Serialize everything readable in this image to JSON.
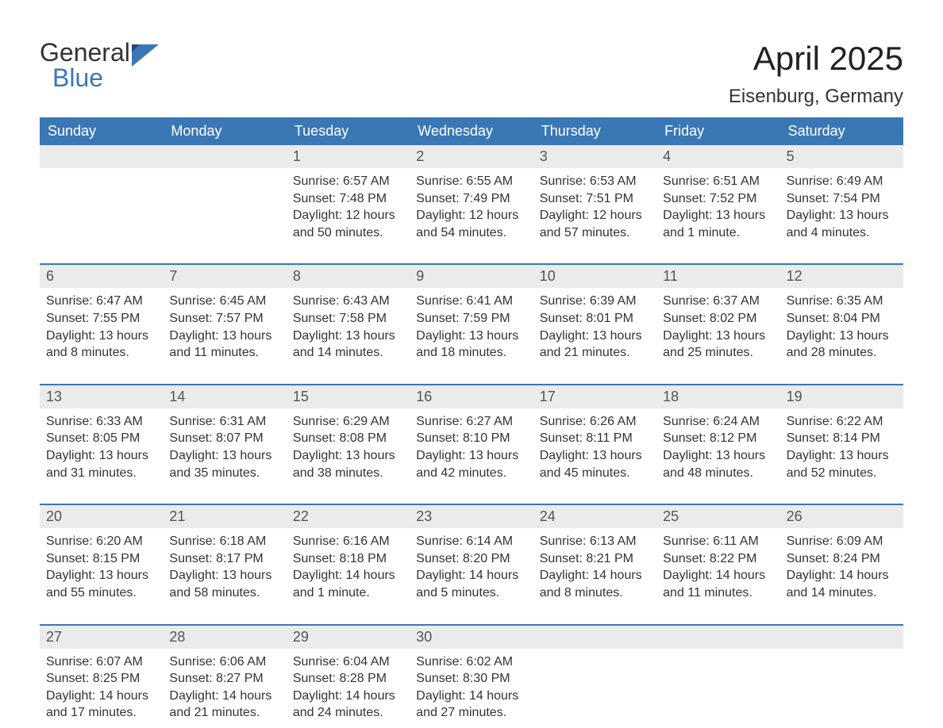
{
  "logo": {
    "word1": "General",
    "word2": "Blue",
    "accent_color": "#3a78b5"
  },
  "header": {
    "month_title": "April 2025",
    "location": "Eisenburg, Germany",
    "title_fontsize": 42,
    "location_fontsize": 24
  },
  "calendar": {
    "header_bg": "#3a78b5",
    "header_fg": "#ffffff",
    "daynum_bg": "#ebebeb",
    "row_border_color": "#3a78b5",
    "text_color": "#333333",
    "days_of_week": [
      "Sunday",
      "Monday",
      "Tuesday",
      "Wednesday",
      "Thursday",
      "Friday",
      "Saturday"
    ],
    "weeks": [
      [
        {
          "day": "",
          "sunrise": "",
          "sunset": "",
          "daylight1": "",
          "daylight2": ""
        },
        {
          "day": "",
          "sunrise": "",
          "sunset": "",
          "daylight1": "",
          "daylight2": ""
        },
        {
          "day": "1",
          "sunrise": "Sunrise: 6:57 AM",
          "sunset": "Sunset: 7:48 PM",
          "daylight1": "Daylight: 12 hours",
          "daylight2": "and 50 minutes."
        },
        {
          "day": "2",
          "sunrise": "Sunrise: 6:55 AM",
          "sunset": "Sunset: 7:49 PM",
          "daylight1": "Daylight: 12 hours",
          "daylight2": "and 54 minutes."
        },
        {
          "day": "3",
          "sunrise": "Sunrise: 6:53 AM",
          "sunset": "Sunset: 7:51 PM",
          "daylight1": "Daylight: 12 hours",
          "daylight2": "and 57 minutes."
        },
        {
          "day": "4",
          "sunrise": "Sunrise: 6:51 AM",
          "sunset": "Sunset: 7:52 PM",
          "daylight1": "Daylight: 13 hours",
          "daylight2": "and 1 minute."
        },
        {
          "day": "5",
          "sunrise": "Sunrise: 6:49 AM",
          "sunset": "Sunset: 7:54 PM",
          "daylight1": "Daylight: 13 hours",
          "daylight2": "and 4 minutes."
        }
      ],
      [
        {
          "day": "6",
          "sunrise": "Sunrise: 6:47 AM",
          "sunset": "Sunset: 7:55 PM",
          "daylight1": "Daylight: 13 hours",
          "daylight2": "and 8 minutes."
        },
        {
          "day": "7",
          "sunrise": "Sunrise: 6:45 AM",
          "sunset": "Sunset: 7:57 PM",
          "daylight1": "Daylight: 13 hours",
          "daylight2": "and 11 minutes."
        },
        {
          "day": "8",
          "sunrise": "Sunrise: 6:43 AM",
          "sunset": "Sunset: 7:58 PM",
          "daylight1": "Daylight: 13 hours",
          "daylight2": "and 14 minutes."
        },
        {
          "day": "9",
          "sunrise": "Sunrise: 6:41 AM",
          "sunset": "Sunset: 7:59 PM",
          "daylight1": "Daylight: 13 hours",
          "daylight2": "and 18 minutes."
        },
        {
          "day": "10",
          "sunrise": "Sunrise: 6:39 AM",
          "sunset": "Sunset: 8:01 PM",
          "daylight1": "Daylight: 13 hours",
          "daylight2": "and 21 minutes."
        },
        {
          "day": "11",
          "sunrise": "Sunrise: 6:37 AM",
          "sunset": "Sunset: 8:02 PM",
          "daylight1": "Daylight: 13 hours",
          "daylight2": "and 25 minutes."
        },
        {
          "day": "12",
          "sunrise": "Sunrise: 6:35 AM",
          "sunset": "Sunset: 8:04 PM",
          "daylight1": "Daylight: 13 hours",
          "daylight2": "and 28 minutes."
        }
      ],
      [
        {
          "day": "13",
          "sunrise": "Sunrise: 6:33 AM",
          "sunset": "Sunset: 8:05 PM",
          "daylight1": "Daylight: 13 hours",
          "daylight2": "and 31 minutes."
        },
        {
          "day": "14",
          "sunrise": "Sunrise: 6:31 AM",
          "sunset": "Sunset: 8:07 PM",
          "daylight1": "Daylight: 13 hours",
          "daylight2": "and 35 minutes."
        },
        {
          "day": "15",
          "sunrise": "Sunrise: 6:29 AM",
          "sunset": "Sunset: 8:08 PM",
          "daylight1": "Daylight: 13 hours",
          "daylight2": "and 38 minutes."
        },
        {
          "day": "16",
          "sunrise": "Sunrise: 6:27 AM",
          "sunset": "Sunset: 8:10 PM",
          "daylight1": "Daylight: 13 hours",
          "daylight2": "and 42 minutes."
        },
        {
          "day": "17",
          "sunrise": "Sunrise: 6:26 AM",
          "sunset": "Sunset: 8:11 PM",
          "daylight1": "Daylight: 13 hours",
          "daylight2": "and 45 minutes."
        },
        {
          "day": "18",
          "sunrise": "Sunrise: 6:24 AM",
          "sunset": "Sunset: 8:12 PM",
          "daylight1": "Daylight: 13 hours",
          "daylight2": "and 48 minutes."
        },
        {
          "day": "19",
          "sunrise": "Sunrise: 6:22 AM",
          "sunset": "Sunset: 8:14 PM",
          "daylight1": "Daylight: 13 hours",
          "daylight2": "and 52 minutes."
        }
      ],
      [
        {
          "day": "20",
          "sunrise": "Sunrise: 6:20 AM",
          "sunset": "Sunset: 8:15 PM",
          "daylight1": "Daylight: 13 hours",
          "daylight2": "and 55 minutes."
        },
        {
          "day": "21",
          "sunrise": "Sunrise: 6:18 AM",
          "sunset": "Sunset: 8:17 PM",
          "daylight1": "Daylight: 13 hours",
          "daylight2": "and 58 minutes."
        },
        {
          "day": "22",
          "sunrise": "Sunrise: 6:16 AM",
          "sunset": "Sunset: 8:18 PM",
          "daylight1": "Daylight: 14 hours",
          "daylight2": "and 1 minute."
        },
        {
          "day": "23",
          "sunrise": "Sunrise: 6:14 AM",
          "sunset": "Sunset: 8:20 PM",
          "daylight1": "Daylight: 14 hours",
          "daylight2": "and 5 minutes."
        },
        {
          "day": "24",
          "sunrise": "Sunrise: 6:13 AM",
          "sunset": "Sunset: 8:21 PM",
          "daylight1": "Daylight: 14 hours",
          "daylight2": "and 8 minutes."
        },
        {
          "day": "25",
          "sunrise": "Sunrise: 6:11 AM",
          "sunset": "Sunset: 8:22 PM",
          "daylight1": "Daylight: 14 hours",
          "daylight2": "and 11 minutes."
        },
        {
          "day": "26",
          "sunrise": "Sunrise: 6:09 AM",
          "sunset": "Sunset: 8:24 PM",
          "daylight1": "Daylight: 14 hours",
          "daylight2": "and 14 minutes."
        }
      ],
      [
        {
          "day": "27",
          "sunrise": "Sunrise: 6:07 AM",
          "sunset": "Sunset: 8:25 PM",
          "daylight1": "Daylight: 14 hours",
          "daylight2": "and 17 minutes."
        },
        {
          "day": "28",
          "sunrise": "Sunrise: 6:06 AM",
          "sunset": "Sunset: 8:27 PM",
          "daylight1": "Daylight: 14 hours",
          "daylight2": "and 21 minutes."
        },
        {
          "day": "29",
          "sunrise": "Sunrise: 6:04 AM",
          "sunset": "Sunset: 8:28 PM",
          "daylight1": "Daylight: 14 hours",
          "daylight2": "and 24 minutes."
        },
        {
          "day": "30",
          "sunrise": "Sunrise: 6:02 AM",
          "sunset": "Sunset: 8:30 PM",
          "daylight1": "Daylight: 14 hours",
          "daylight2": "and 27 minutes."
        },
        {
          "day": "",
          "sunrise": "",
          "sunset": "",
          "daylight1": "",
          "daylight2": ""
        },
        {
          "day": "",
          "sunrise": "",
          "sunset": "",
          "daylight1": "",
          "daylight2": ""
        },
        {
          "day": "",
          "sunrise": "",
          "sunset": "",
          "daylight1": "",
          "daylight2": ""
        }
      ]
    ]
  }
}
